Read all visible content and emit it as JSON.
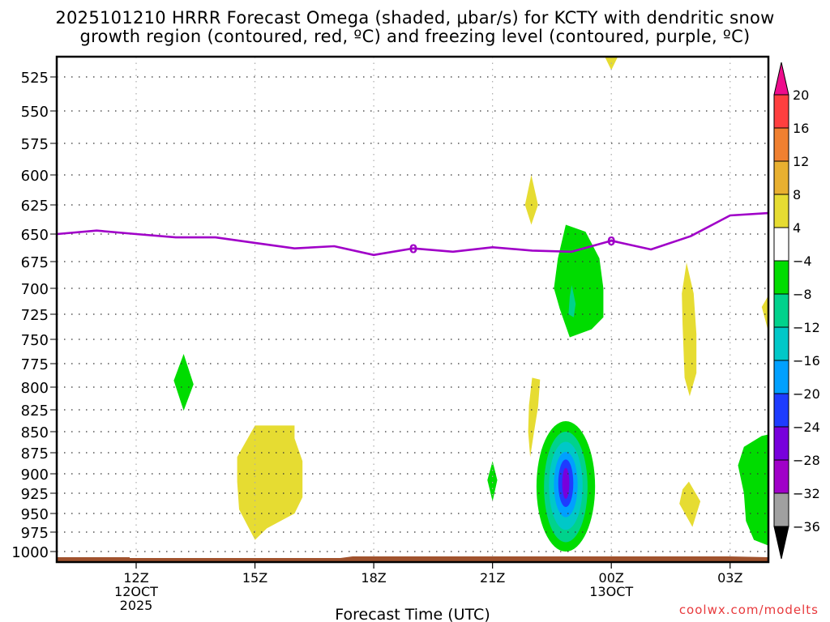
{
  "chart_data": {
    "type": "heatmap",
    "title_line1": "2025101210 HRRR Forecast Omega (shaded, μbar/s) for KCTY with dendritic snow",
    "title_line2": "growth region (contoured, red, ºC) and freezing level (contoured, purple, ºC)",
    "xlabel": "Forecast Time (UTC)",
    "ylabel": "",
    "x_ticks": [
      {
        "hour": 12,
        "label": "12Z",
        "sub": [
          "12OCT",
          "2025"
        ]
      },
      {
        "hour": 15,
        "label": "15Z",
        "sub": []
      },
      {
        "hour": 18,
        "label": "18Z",
        "sub": []
      },
      {
        "hour": 21,
        "label": "21Z",
        "sub": []
      },
      {
        "hour": 24,
        "label": "00Z",
        "sub": [
          "13OCT"
        ]
      },
      {
        "hour": 27,
        "label": "03Z",
        "sub": []
      }
    ],
    "xlim_hours": [
      10,
      28
    ],
    "y_ticks": [
      525,
      550,
      575,
      600,
      625,
      650,
      675,
      700,
      725,
      750,
      775,
      800,
      825,
      850,
      875,
      900,
      925,
      950,
      975,
      1000
    ],
    "ylim_hPa": [
      510,
      1016
    ],
    "grid": true,
    "colorbar": {
      "labels": [
        "20",
        "16",
        "12",
        "8",
        "4",
        "-4",
        "-8",
        "-12",
        "-16",
        "-20",
        "-24",
        "-28",
        "-32",
        "-36"
      ],
      "bins": [
        {
          "range": "> 20",
          "color": "#ee0c8c"
        },
        {
          "range": "16 to 20",
          "color": "#ff3f3f"
        },
        {
          "range": "12 to 16",
          "color": "#f08030"
        },
        {
          "range": "8 to 12",
          "color": "#e8b030"
        },
        {
          "range": "4 to 8",
          "color": "#e6dc32"
        },
        {
          "range": "-4 to 4",
          "color": "#ffffff"
        },
        {
          "range": "-8 to -4",
          "color": "#00dc00"
        },
        {
          "range": "-12 to -8",
          "color": "#00d28c"
        },
        {
          "range": "-16 to -12",
          "color": "#00c8c8"
        },
        {
          "range": "-20 to -16",
          "color": "#00a0ff"
        },
        {
          "range": "-24 to -20",
          "color": "#1e3cff"
        },
        {
          "range": "-28 to -24",
          "color": "#7800dc"
        },
        {
          "range": "-32 to -28",
          "color": "#a000c8"
        },
        {
          "range": "-36 to -32",
          "color": "#a0a0a0"
        },
        {
          "range": "< -36",
          "color": "#000000"
        }
      ]
    },
    "freezing_level": {
      "label": "0",
      "color": "#a000c8",
      "points": [
        [
          10.0,
          650
        ],
        [
          11.0,
          647
        ],
        [
          12.0,
          650
        ],
        [
          13.0,
          653
        ],
        [
          14.0,
          653
        ],
        [
          15.0,
          658
        ],
        [
          16.0,
          663
        ],
        [
          17.0,
          661
        ],
        [
          18.0,
          669
        ],
        [
          19.0,
          663
        ],
        [
          20.0,
          666
        ],
        [
          21.0,
          662
        ],
        [
          22.0,
          665
        ],
        [
          23.0,
          666
        ],
        [
          24.0,
          656
        ],
        [
          25.0,
          664
        ],
        [
          26.0,
          652
        ],
        [
          27.0,
          634
        ],
        [
          28.0,
          632
        ]
      ],
      "label_positions": [
        [
          19.0,
          663
        ],
        [
          24.0,
          656
        ]
      ]
    },
    "omega_features": [
      {
        "name": "green-cell-13z",
        "value_bin": "-8 to -4",
        "center_hour": 13.2,
        "pressure_range": [
          765,
          825
        ]
      },
      {
        "name": "yellow-cell-15z",
        "value_bin": "4 to 8",
        "center_hour": 15.0,
        "pressure_range": [
          843,
          985
        ]
      },
      {
        "name": "yellow-cell-2130z-upper",
        "value_bin": "4 to 8",
        "center_hour": 21.9,
        "pressure_range": [
          600,
          640
        ]
      },
      {
        "name": "yellow-cell-2130z-lower",
        "value_bin": "4 to 8",
        "center_hour": 21.9,
        "pressure_range": [
          788,
          880
        ]
      },
      {
        "name": "green-cell-21z",
        "value_bin": "-8 to -4",
        "center_hour": 21.0,
        "pressure_range": [
          885,
          935
        ]
      },
      {
        "name": "green-cell-2300z-upper",
        "value_bin": "-12 to -8 min",
        "center_hour": 23.0,
        "pressure_range": [
          640,
          745
        ]
      },
      {
        "name": "updraft-core-2300z",
        "value_bin": "-28 to -24 min",
        "center_hour": 22.9,
        "pressure_range": [
          838,
          1000
        ],
        "min_omega": -26
      },
      {
        "name": "yellow-cell-00z-top",
        "value_bin": "4 to 8",
        "center_hour": 24.0,
        "pressure_range": [
          510,
          518
        ]
      },
      {
        "name": "yellow-cell-02z-upper",
        "value_bin": "4 to 8",
        "center_hour": 26.0,
        "pressure_range": [
          675,
          810
        ]
      },
      {
        "name": "yellow-cell-02z-lower",
        "value_bin": "4 to 8",
        "center_hour": 26.0,
        "pressure_range": [
          910,
          970
        ]
      },
      {
        "name": "green-cell-0330z",
        "value_bin": "-8 to -4",
        "center_hour": 27.8,
        "pressure_range": [
          860,
          990
        ]
      },
      {
        "name": "yellow-cell-0345z",
        "value_bin": "4 to 8",
        "center_hour": 27.9,
        "pressure_range": [
          705,
          745
        ]
      }
    ],
    "terrain_color": "#a0522d"
  },
  "credit": "coolwx.com/modelts"
}
